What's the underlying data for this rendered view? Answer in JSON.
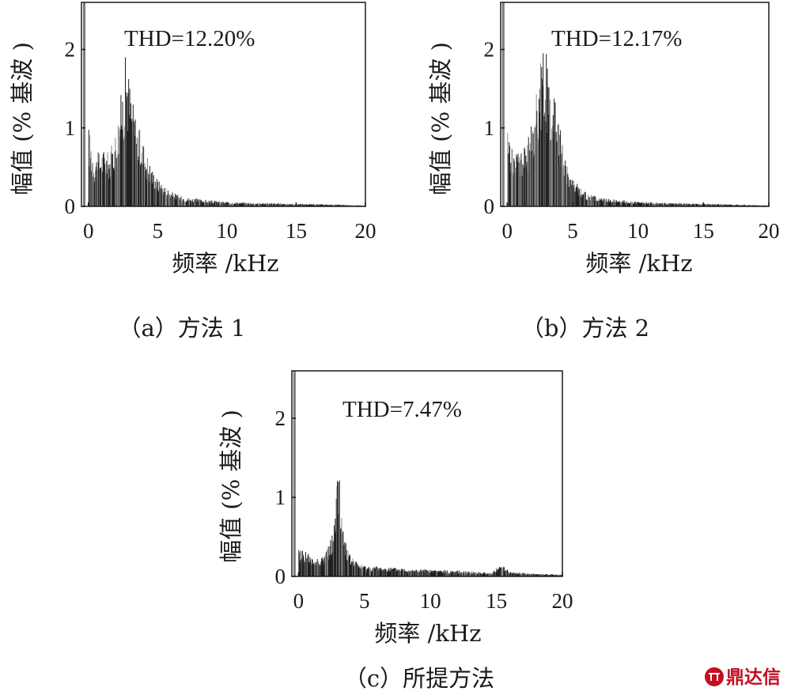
{
  "chart_data": [
    {
      "id": "a",
      "type": "bar",
      "thd_label": "THD=12.20%",
      "caption": "（a）方法 1",
      "xlabel": "频率 /kHz",
      "ylabel": "幅值 (% 基波 )",
      "xlim": [
        -0.5,
        20
      ],
      "ylim": [
        0,
        2.6
      ],
      "xticks": [
        0,
        5,
        10,
        15,
        20
      ],
      "yticks": [
        0,
        1,
        2
      ],
      "fundamental": {
        "x": -0.3,
        "y": 2.6
      },
      "envelope": [
        [
          0,
          0.9
        ],
        [
          0.4,
          0.55
        ],
        [
          1,
          0.65
        ],
        [
          1.5,
          0.6
        ],
        [
          2,
          0.9
        ],
        [
          2.4,
          1.35
        ],
        [
          2.7,
          1.75
        ],
        [
          3.1,
          1.25
        ],
        [
          3.5,
          0.95
        ],
        [
          4,
          0.7
        ],
        [
          4.5,
          0.45
        ],
        [
          5,
          0.3
        ],
        [
          6,
          0.16
        ],
        [
          7,
          0.1
        ],
        [
          8,
          0.08
        ],
        [
          10,
          0.05
        ],
        [
          12,
          0.04
        ],
        [
          15,
          0.03
        ],
        [
          18,
          0.02
        ],
        [
          20,
          0.01
        ]
      ]
    },
    {
      "id": "b",
      "type": "bar",
      "thd_label": "THD=12.17%",
      "caption": "（b）方法 2",
      "xlabel": "频率 /kHz",
      "ylabel": "幅值 (% 基波 )",
      "xlim": [
        -0.5,
        20
      ],
      "ylim": [
        0,
        2.6
      ],
      "xticks": [
        0,
        5,
        10,
        15,
        20
      ],
      "yticks": [
        0,
        1,
        2
      ],
      "fundamental": {
        "x": -0.3,
        "y": 2.6
      },
      "envelope": [
        [
          0,
          0.85
        ],
        [
          0.5,
          0.6
        ],
        [
          1,
          0.65
        ],
        [
          1.5,
          0.7
        ],
        [
          2,
          1.05
        ],
        [
          2.4,
          1.5
        ],
        [
          2.8,
          1.85
        ],
        [
          3.2,
          1.45
        ],
        [
          3.6,
          1.2
        ],
        [
          4,
          0.9
        ],
        [
          4.5,
          0.5
        ],
        [
          5,
          0.3
        ],
        [
          6,
          0.15
        ],
        [
          7,
          0.1
        ],
        [
          8,
          0.08
        ],
        [
          10,
          0.05
        ],
        [
          12,
          0.04
        ],
        [
          15,
          0.03
        ],
        [
          18,
          0.02
        ],
        [
          20,
          0.01
        ]
      ]
    },
    {
      "id": "c",
      "type": "bar",
      "thd_label": "THD=7.47%",
      "caption": "（c）所提方法",
      "xlabel": "频率 /kHz",
      "ylabel": "幅值 (% 基波 )",
      "xlim": [
        -0.5,
        20
      ],
      "ylim": [
        0,
        2.6
      ],
      "xticks": [
        0,
        5,
        10,
        15,
        20
      ],
      "yticks": [
        0,
        1,
        2
      ],
      "fundamental": {
        "x": -0.3,
        "y": 2.6
      },
      "envelope": [
        [
          0,
          0.3
        ],
        [
          0.5,
          0.3
        ],
        [
          1,
          0.2
        ],
        [
          2,
          0.25
        ],
        [
          2.6,
          0.5
        ],
        [
          3,
          1.3
        ],
        [
          3.3,
          0.6
        ],
        [
          3.8,
          0.25
        ],
        [
          4.5,
          0.15
        ],
        [
          5,
          0.12
        ],
        [
          7,
          0.1
        ],
        [
          9,
          0.08
        ],
        [
          11,
          0.07
        ],
        [
          13,
          0.06
        ],
        [
          14.5,
          0.04
        ],
        [
          15.5,
          0.14
        ],
        [
          16,
          0.05
        ],
        [
          18,
          0.03
        ],
        [
          20,
          0.02
        ]
      ]
    }
  ],
  "watermark": {
    "text": "鼎达信",
    "color": "#c40f22"
  }
}
